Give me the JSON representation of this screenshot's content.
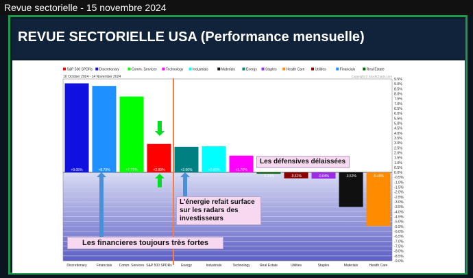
{
  "window_title": "Revue sectorielle - 15 novembre 2024",
  "slide_title": "REVUE SECTORIELLE USA  (Performance mensuelle)",
  "chart_data": {
    "type": "bar",
    "date_range": "10 October 2024 - 14 November 2024",
    "copyright": "Copyright © StockCharts.com",
    "legend": [
      {
        "label": "S&P 500 SPDRs",
        "color": "#ff0000"
      },
      {
        "label": "Discretionary",
        "color": "#1010e0"
      },
      {
        "label": "Comm. Services",
        "color": "#00ff00"
      },
      {
        "label": "Technology",
        "color": "#ff00ff"
      },
      {
        "label": "Industrials",
        "color": "#00ffff"
      },
      {
        "label": "Materials",
        "color": "#101010"
      },
      {
        "label": "Energy",
        "color": "#008080"
      },
      {
        "label": "Staples",
        "color": "#9d2be8"
      },
      {
        "label": "Health Care",
        "color": "#ff8c00"
      },
      {
        "label": "Utilities",
        "color": "#8b0000"
      },
      {
        "label": "Financials",
        "color": "#1e90ff"
      },
      {
        "label": "Real Estate",
        "color": "#006400"
      }
    ],
    "categories": [
      "Discretionary",
      "Financials",
      "Comm. Services",
      "S&P 500 SPDRs",
      "Energy",
      "Industrials",
      "Technology",
      "Real Estate",
      "Utilities",
      "Staples",
      "Materials",
      "Health Care"
    ],
    "values": [
      9.05,
      8.79,
      7.71,
      2.89,
      2.6,
      2.65,
      1.7,
      -0.14,
      -0.61,
      -0.64,
      -3.52,
      -5.46
    ],
    "value_labels": [
      "+9.05%",
      "+8.79%",
      "+7.71%",
      "+2.89%",
      "+2.60%",
      "+2.65%",
      "+1.70%",
      "-0.14%",
      "-0.61%",
      "-0.64%",
      "-3.52%",
      "-5.46%"
    ],
    "colors": [
      "#1010e0",
      "#1e90ff",
      "#00ff00",
      "#ff0000",
      "#008080",
      "#00ffff",
      "#ff00ff",
      "#006400",
      "#8b0000",
      "#9d2be8",
      "#101010",
      "#ff8c00"
    ],
    "y_ticks": [
      "9.5%",
      "9.0%",
      "8.5%",
      "8.0%",
      "7.5%",
      "7.0%",
      "6.5%",
      "6.0%",
      "5.5%",
      "5.0%",
      "4.5%",
      "4.0%",
      "3.5%",
      "3.0%",
      "2.5%",
      "2.0%",
      "1.5%",
      "1.0%",
      "0.5%",
      "0.0%",
      "-0.5%",
      "-1.0%",
      "-1.5%",
      "-2.0%",
      "-2.5%",
      "-3.0%",
      "-3.5%",
      "-4.0%",
      "-4.5%",
      "-5.0%",
      "-5.5%",
      "-6.0%",
      "-6.5%",
      "-7.0%",
      "-7.5%",
      "-8.0%",
      "-8.5%",
      "-9.0%"
    ],
    "ylim": [
      -9,
      9.5
    ]
  },
  "callouts": {
    "defensive": "Les défensives délaissées",
    "energy": "L'énergie refait surface sur les radars des investisseurs",
    "financials": "Les financieres toujours très fortes"
  },
  "annotation_colors": {
    "green_arrow": "#00dd22",
    "blue_arrow": "#4a90d9",
    "orange_line": "#ff7a3c"
  }
}
